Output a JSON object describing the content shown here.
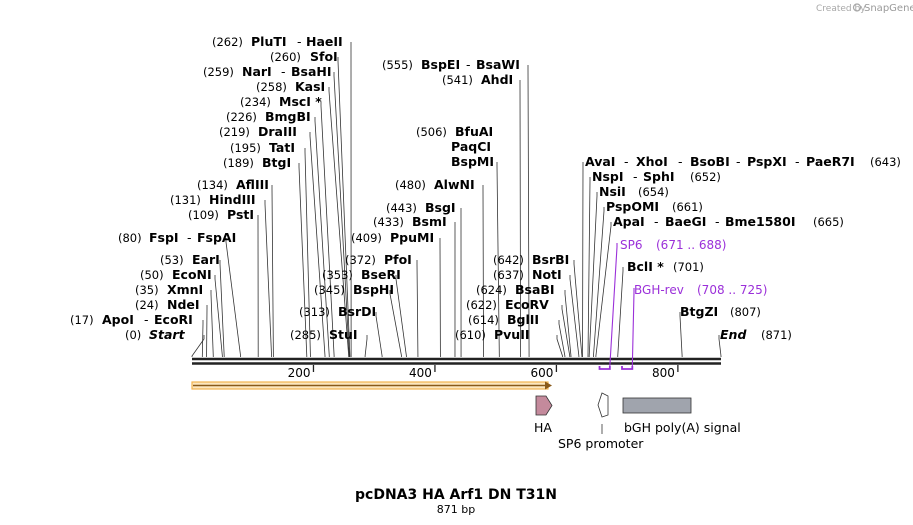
{
  "credit": {
    "prefix": "Created by",
    "brand": "SnapGene"
  },
  "title": "pcDNA3 HA Arf1 DN T31N",
  "length_label": "871 bp",
  "sequence_length": 871,
  "ticks": [
    {
      "pos": 200,
      "label": "200"
    },
    {
      "pos": 400,
      "label": "400"
    },
    {
      "pos": 600,
      "label": "600"
    },
    {
      "pos": 800,
      "label": "800"
    }
  ],
  "sites": [
    {
      "pos_label": "(262)",
      "names": [
        "PluTI",
        "HaeII"
      ],
      "bp": 262
    },
    {
      "pos_label": "(260)",
      "names": [
        "SfoI"
      ],
      "bp": 260
    },
    {
      "pos_label": "(259)",
      "names": [
        "NarI",
        "BsaHI"
      ],
      "bp": 259
    },
    {
      "pos_label": "(258)",
      "names": [
        "KasI"
      ],
      "bp": 258
    },
    {
      "pos_label": "(234)",
      "names": [
        "MscI *"
      ],
      "bp": 234
    },
    {
      "pos_label": "(226)",
      "names": [
        "BmgBI"
      ],
      "bp": 226
    },
    {
      "pos_label": "(219)",
      "names": [
        "DraIII"
      ],
      "bp": 219
    },
    {
      "pos_label": "(195)",
      "names": [
        "TatI"
      ],
      "bp": 195
    },
    {
      "pos_label": "(189)",
      "names": [
        "BtgI"
      ],
      "bp": 189
    },
    {
      "pos_label": "(134)",
      "names": [
        "AflIII"
      ],
      "bp": 134
    },
    {
      "pos_label": "(131)",
      "names": [
        "HindIII"
      ],
      "bp": 131
    },
    {
      "pos_label": "(109)",
      "names": [
        "PstI"
      ],
      "bp": 109
    },
    {
      "pos_label": "(80)",
      "names": [
        "FspI",
        "FspAI"
      ],
      "bp": 80
    },
    {
      "pos_label": "(53)",
      "names": [
        "EarI"
      ],
      "bp": 53
    },
    {
      "pos_label": "(50)",
      "names": [
        "EcoNI"
      ],
      "bp": 50
    },
    {
      "pos_label": "(35)",
      "names": [
        "XmnI"
      ],
      "bp": 35
    },
    {
      "pos_label": "(24)",
      "names": [
        "NdeI"
      ],
      "bp": 24
    },
    {
      "pos_label": "(17)",
      "names": [
        "ApoI",
        "EcoRI"
      ],
      "bp": 17
    },
    {
      "pos_label": "(0)",
      "names": [
        "Start"
      ],
      "bp": 0,
      "italic": true
    },
    {
      "pos_label": "(555)",
      "names": [
        "BspEI",
        "BsaWI"
      ],
      "bp": 555
    },
    {
      "pos_label": "(541)",
      "names": [
        "AhdI"
      ],
      "bp": 541
    },
    {
      "pos_label": "(506)",
      "names": [
        "BfuAI",
        "PaqCI",
        "BspMI"
      ],
      "bp": 506
    },
    {
      "pos_label": "(480)",
      "names": [
        "AlwNI"
      ],
      "bp": 480
    },
    {
      "pos_label": "(443)",
      "names": [
        "BsgI"
      ],
      "bp": 443
    },
    {
      "pos_label": "(433)",
      "names": [
        "BsmI"
      ],
      "bp": 433
    },
    {
      "pos_label": "(409)",
      "names": [
        "PpuMI"
      ],
      "bp": 409
    },
    {
      "pos_label": "(372)",
      "names": [
        "PfoI"
      ],
      "bp": 372
    },
    {
      "pos_label": "(353)",
      "names": [
        "BseRI"
      ],
      "bp": 353
    },
    {
      "pos_label": "(345)",
      "names": [
        "BspHI"
      ],
      "bp": 345
    },
    {
      "pos_label": "(313)",
      "names": [
        "BsrDI"
      ],
      "bp": 313
    },
    {
      "pos_label": "(285)",
      "names": [
        "StuI"
      ],
      "bp": 285
    },
    {
      "pos_label": "(642)",
      "names": [
        "BsrBI"
      ],
      "bp": 642
    },
    {
      "pos_label": "(637)",
      "names": [
        "NotI"
      ],
      "bp": 637
    },
    {
      "pos_label": "(624)",
      "names": [
        "BsaBI"
      ],
      "bp": 624
    },
    {
      "pos_label": "(622)",
      "names": [
        "EcoRV"
      ],
      "bp": 622
    },
    {
      "pos_label": "(614)",
      "names": [
        "BglII"
      ],
      "bp": 614
    },
    {
      "pos_label": "(610)",
      "names": [
        "PvuII"
      ],
      "bp": 610
    },
    {
      "pos_label": "(643)",
      "names": [
        "AvaI",
        "XhoI",
        "BsoBI",
        "PspXI",
        "PaeR7I"
      ],
      "bp": 643
    },
    {
      "pos_label": "(652)",
      "names": [
        "NspI",
        "SphI"
      ],
      "bp": 652
    },
    {
      "pos_label": "(654)",
      "names": [
        "NsiI"
      ],
      "bp": 654
    },
    {
      "pos_label": "(661)",
      "names": [
        "PspOMI"
      ],
      "bp": 661
    },
    {
      "pos_label": "(665)",
      "names": [
        "ApaI",
        "BaeGI",
        "Bme1580I"
      ],
      "bp": 665
    },
    {
      "pos_label": "(701)",
      "names": [
        "BclI *"
      ],
      "bp": 701
    },
    {
      "pos_label": "(807)",
      "names": [
        "BtgZI"
      ],
      "bp": 807
    },
    {
      "pos_label": "(871)",
      "names": [
        "End"
      ],
      "bp": 871,
      "italic": true
    }
  ],
  "primers": [
    {
      "name": "SP6",
      "range": "(671 .. 688)",
      "start": 671,
      "end": 688,
      "color": "#9b30d9"
    },
    {
      "name": "BGH-rev",
      "range": "(708 .. 725)",
      "start": 708,
      "end": 725,
      "color": "#9b30d9"
    }
  ],
  "features": [
    {
      "name": "HA",
      "type": "arrow",
      "color": "#c48a9c"
    },
    {
      "name": "SP6 promoter",
      "type": "arrow-left",
      "color": "#ffffff"
    },
    {
      "name": "bGH poly(A) signal",
      "type": "box",
      "color": "#a0a4ad"
    }
  ],
  "orf_color": "#f2b54f"
}
